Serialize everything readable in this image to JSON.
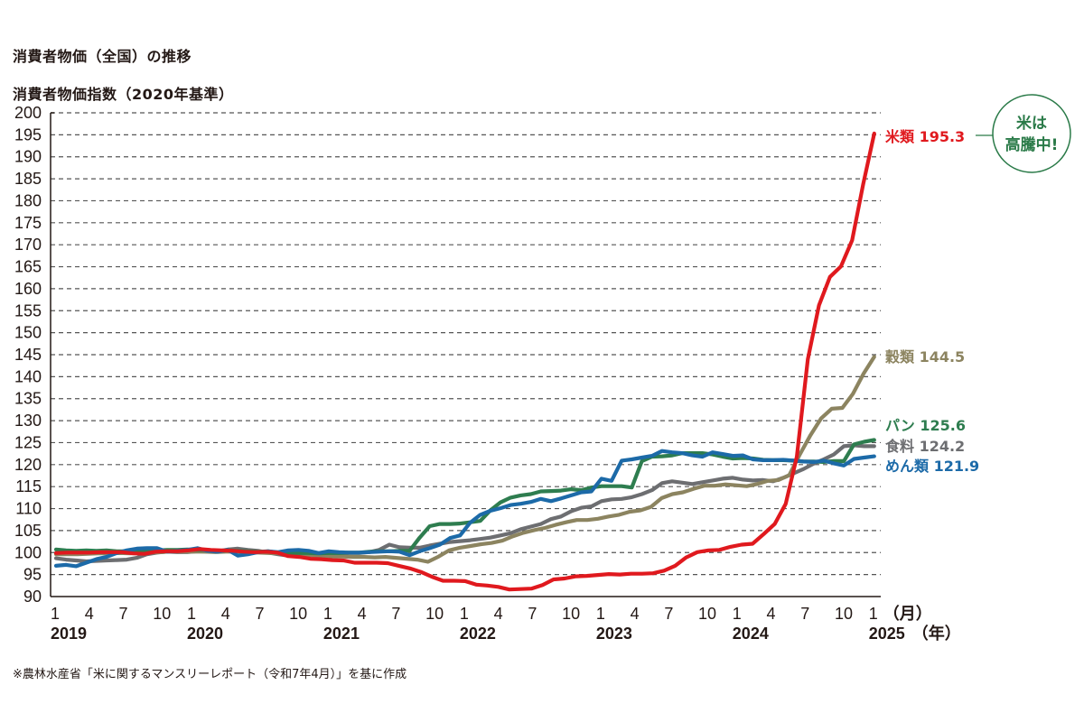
{
  "chart_data": {
    "type": "line",
    "title": "消費者物価（全国）の推移",
    "ylabel": "消費者物価指数（2020年基準）",
    "ylim": [
      90,
      200
    ],
    "ytick_step": 5,
    "yticks": [
      "90",
      "95",
      "100",
      "105",
      "110",
      "115",
      "120",
      "125",
      "130",
      "135",
      "140",
      "145",
      "150",
      "155",
      "160",
      "165",
      "170",
      "175",
      "180",
      "185",
      "190",
      "195",
      "200"
    ],
    "grid": "horizontal-dashed",
    "x_unit_label": "（月）",
    "year_unit_label": "（年）",
    "xticks": [
      "1",
      "4",
      "7",
      "10",
      "1",
      "4",
      "7",
      "10",
      "1",
      "4",
      "7",
      "10",
      "1",
      "4",
      "7",
      "10",
      "1",
      "4",
      "7",
      "10",
      "1",
      "4",
      "7",
      "10",
      "1"
    ],
    "xtick_months_index": [
      0,
      3,
      6,
      9,
      12,
      15,
      18,
      21,
      24,
      27,
      30,
      33,
      36,
      39,
      42,
      45,
      48,
      51,
      54,
      57,
      60,
      63,
      66,
      69,
      72
    ],
    "year_labels": [
      {
        "label": "2019",
        "month_index": 0
      },
      {
        "label": "2020",
        "month_index": 12
      },
      {
        "label": "2021",
        "month_index": 24
      },
      {
        "label": "2022",
        "month_index": 36
      },
      {
        "label": "2023",
        "month_index": 48
      },
      {
        "label": "2024",
        "month_index": 60
      },
      {
        "label": "2025",
        "month_index": 72
      }
    ],
    "x_start": "2019-01",
    "x_end": "2025-01",
    "series": [
      {
        "name": "食料",
        "end_label": "食料 124.2",
        "color": "#6d6e71",
        "values": [
          98.7,
          98.4,
          98.2,
          98.0,
          98.1,
          98.2,
          98.3,
          98.4,
          98.8,
          99.6,
          100.0,
          100.2,
          100.1,
          100.1,
          100.3,
          100.2,
          100.3,
          100.7,
          100.9,
          100.6,
          100.4,
          100.0,
          99.6,
          99.3,
          99.5,
          99.6,
          99.5,
          99.5,
          99.7,
          99.9,
          99.9,
          100.1,
          100.6,
          101.8,
          101.2,
          101.1,
          101.1,
          101.6,
          102.0,
          102.4,
          102.6,
          102.8,
          103.1,
          103.4,
          103.9,
          104.4,
          105.3,
          105.9,
          106.5,
          107.6,
          108.2,
          109.4,
          110.2,
          110.5,
          111.7,
          112.1,
          112.2,
          112.6,
          113.3,
          114.2,
          115.8,
          116.2,
          115.9,
          115.6,
          116.0,
          116.4,
          116.8,
          117.0,
          116.6,
          116.4,
          116.5,
          116.2,
          117.0,
          118.0,
          119.0,
          120.2,
          121.2,
          122.3,
          124.2,
          124.4,
          124.2,
          124.2
        ],
        "end_value": 124.2
      },
      {
        "name": "穀類",
        "end_label": "穀類 144.5",
        "color": "#8c8460",
        "values": [
          99.6,
          99.6,
          99.6,
          99.7,
          99.8,
          99.8,
          99.9,
          99.8,
          99.9,
          100.0,
          100.1,
          100.3,
          100.2,
          100.2,
          100.2,
          100.1,
          100.2,
          100.2,
          100.1,
          100.0,
          99.9,
          99.8,
          99.8,
          99.6,
          99.4,
          99.3,
          99.1,
          99.1,
          99.0,
          99.0,
          98.9,
          99.0,
          98.8,
          98.6,
          98.4,
          97.9,
          99.1,
          100.5,
          101.1,
          101.5,
          101.9,
          102.2,
          102.7,
          103.7,
          104.5,
          105.1,
          105.6,
          106.3,
          106.9,
          107.4,
          107.4,
          107.7,
          108.2,
          108.6,
          109.3,
          109.6,
          110.4,
          112.4,
          113.3,
          113.7,
          114.5,
          115.2,
          115.2,
          115.5,
          115.3,
          115.1,
          115.6,
          116.3,
          116.5,
          117.6,
          122.3,
          126.7,
          130.5,
          132.7,
          132.9,
          136.1,
          140.7,
          144.5
        ],
        "end_value": 144.5
      },
      {
        "name": "パン",
        "end_label": "パン 125.6",
        "color": "#2e7d4f",
        "values": [
          100.7,
          100.5,
          100.4,
          100.5,
          100.4,
          100.5,
          100.3,
          100.3,
          100.4,
          100.5,
          100.5,
          100.6,
          100.6,
          100.7,
          100.6,
          100.6,
          100.3,
          100.5,
          100.4,
          100.3,
          100.2,
          100.3,
          100.0,
          99.9,
          99.9,
          99.9,
          99.8,
          99.9,
          99.9,
          100.0,
          100.0,
          100.2,
          100.3,
          100.3,
          100.4,
          100.4,
          103.4,
          106.0,
          106.5,
          106.5,
          106.6,
          106.9,
          107.2,
          109.6,
          111.4,
          112.5,
          113.0,
          113.3,
          113.9,
          114.0,
          114.1,
          114.4,
          114.2,
          114.8,
          115.1,
          115.1,
          115.1,
          114.8,
          120.8,
          121.8,
          121.9,
          122.1,
          122.6,
          122.6,
          122.6,
          122.3,
          121.8,
          121.4,
          121.5,
          121.4,
          121.1,
          121.0,
          121.0,
          120.9,
          120.7,
          120.7,
          120.6,
          120.8,
          120.8,
          124.6,
          125.2,
          125.6
        ],
        "end_value": 125.6
      },
      {
        "name": "めん類",
        "end_label": "めん類 121.9",
        "color": "#1c6aa8",
        "values": [
          97.0,
          97.2,
          96.9,
          97.7,
          98.5,
          99.0,
          99.9,
          100.5,
          100.9,
          101.0,
          101.0,
          100.2,
          100.4,
          100.6,
          101.0,
          100.4,
          100.2,
          100.6,
          99.3,
          99.6,
          100.1,
          100.3,
          100.1,
          100.5,
          100.6,
          100.4,
          99.9,
          100.3,
          100.1,
          100.0,
          100.0,
          100.1,
          100.2,
          100.3,
          100.2,
          99.4,
          100.3,
          101.0,
          101.8,
          103.3,
          103.9,
          106.8,
          108.6,
          109.5,
          110.1,
          110.8,
          111.1,
          111.5,
          112.2,
          111.7,
          112.3,
          113.0,
          113.7,
          113.9,
          116.8,
          116.3,
          120.9,
          121.2,
          121.6,
          122.0,
          123.1,
          122.8,
          122.6,
          122.1,
          121.8,
          122.8,
          122.4,
          122.0,
          122.1,
          121.2,
          121.0,
          121.0,
          121.1,
          120.9,
          120.7,
          120.6,
          120.9,
          120.3,
          119.8,
          121.3,
          121.6,
          121.9
        ],
        "end_value": 121.9
      },
      {
        "name": "米類",
        "end_label": "米類 195.3",
        "color": "#e0191e",
        "values": [
          99.9,
          100.0,
          100.0,
          100.0,
          100.1,
          100.1,
          100.1,
          99.8,
          99.7,
          100.2,
          100.3,
          100.3,
          100.5,
          100.8,
          100.6,
          100.5,
          100.4,
          100.2,
          100.1,
          100.2,
          100.0,
          99.2,
          99.0,
          98.6,
          98.5,
          98.3,
          98.2,
          97.7,
          97.7,
          97.7,
          97.6,
          97.0,
          96.4,
          95.6,
          94.5,
          93.6,
          93.6,
          93.5,
          92.7,
          92.5,
          92.2,
          91.6,
          91.7,
          91.8,
          92.6,
          93.9,
          94.1,
          94.6,
          94.7,
          94.9,
          95.1,
          95.0,
          95.2,
          95.2,
          95.3,
          95.9,
          97.0,
          98.9,
          100.1,
          100.5,
          100.6,
          101.3,
          101.8,
          102.0,
          104.2,
          106.5,
          111.1,
          121.8,
          144.0,
          156.2,
          162.7,
          165.1,
          171.0,
          183.7,
          195.3
        ],
        "end_value": 195.3
      }
    ]
  },
  "callout": {
    "line1": "米は",
    "line2": "高騰中!",
    "border_color": "#2a7a48"
  },
  "source_note": "※農林水産省「米に関するマンスリーレポート（令和7年4月）」を基に作成"
}
